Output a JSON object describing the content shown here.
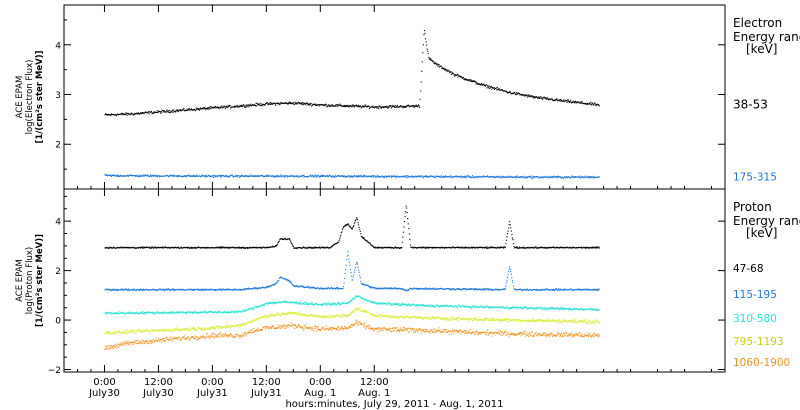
{
  "chart_data": [
    {
      "type": "scatter",
      "panel": "electron",
      "ylabel_lines": [
        "ACE EPAM",
        "log(Electron Flux)",
        "[1/(cm²s ster MeV)]"
      ],
      "ylim": [
        1.1,
        4.8
      ],
      "yticks": [
        2,
        3,
        4
      ],
      "legend_title": [
        "Electron",
        "Energy ranges",
        "[keV]"
      ],
      "series": [
        {
          "name": "38-53",
          "color": "#000000",
          "x": [
            0,
            6,
            12,
            18,
            24,
            30,
            36,
            42,
            48,
            54,
            60,
            66,
            70,
            71,
            71.5,
            72,
            72.5,
            74,
            78,
            84,
            90,
            96,
            102,
            108,
            110
          ],
          "y": [
            2.6,
            2.62,
            2.66,
            2.7,
            2.74,
            2.78,
            2.82,
            2.84,
            2.8,
            2.78,
            2.76,
            2.77,
            2.78,
            4.35,
            4.0,
            3.75,
            3.7,
            3.6,
            3.4,
            3.2,
            3.05,
            2.95,
            2.88,
            2.82,
            2.8
          ],
          "noise": 0.04
        },
        {
          "name": "175-315",
          "color": "#1e78dc",
          "x": [
            0,
            24,
            48,
            72,
            96,
            110
          ],
          "y": [
            1.38,
            1.37,
            1.37,
            1.36,
            1.35,
            1.35
          ],
          "noise": 0.03
        }
      ]
    },
    {
      "type": "scatter",
      "panel": "proton",
      "ylabel_lines": [
        "ACE EPAM",
        "log(Proton Flux)",
        "[1/(cm²s ster MeV)]"
      ],
      "ylim": [
        -2.1,
        5.3
      ],
      "yticks": [
        -2,
        0,
        2,
        4
      ],
      "legend_title": [
        "Proton",
        "Energy ranges",
        "[keV]"
      ],
      "series": [
        {
          "name": "47-68",
          "color": "#000000",
          "x": [
            0,
            36,
            38,
            39,
            41,
            42,
            50,
            52,
            53,
            54,
            55,
            56,
            57,
            60,
            66,
            67,
            68,
            80,
            89,
            90,
            91,
            110
          ],
          "y": [
            2.95,
            2.95,
            3.0,
            3.3,
            3.3,
            2.95,
            2.95,
            3.2,
            3.8,
            3.9,
            3.7,
            4.2,
            3.4,
            2.95,
            2.95,
            4.7,
            2.95,
            2.95,
            2.95,
            4.0,
            2.95,
            2.95
          ],
          "noise": 0.04
        },
        {
          "name": "115-195",
          "color": "#1e78dc",
          "x": [
            0,
            30,
            36,
            38,
            39,
            41,
            42,
            48,
            53,
            54,
            55,
            56,
            57,
            60,
            66,
            67,
            68,
            89,
            90,
            91,
            110
          ],
          "y": [
            1.25,
            1.25,
            1.35,
            1.5,
            1.75,
            1.6,
            1.4,
            1.3,
            1.3,
            2.8,
            1.6,
            2.4,
            1.5,
            1.3,
            1.3,
            1.2,
            1.3,
            1.25,
            2.2,
            1.25,
            1.25
          ],
          "noise": 0.05
        },
        {
          "name": "310-580",
          "color": "#24e0d4",
          "x": [
            0,
            30,
            33,
            36,
            40,
            48,
            54,
            56,
            60,
            72,
            84,
            96,
            110
          ],
          "y": [
            0.3,
            0.35,
            0.5,
            0.7,
            0.75,
            0.65,
            0.7,
            1.0,
            0.7,
            0.6,
            0.55,
            0.5,
            0.45
          ],
          "noise": 0.07
        },
        {
          "name": "795-1193",
          "color": "#d8ec2c",
          "x": [
            0,
            24,
            30,
            33,
            36,
            42,
            48,
            54,
            56,
            60,
            72,
            84,
            96,
            110
          ],
          "y": [
            -0.5,
            -0.3,
            -0.2,
            0.0,
            0.2,
            0.3,
            0.15,
            0.2,
            0.5,
            0.2,
            0.1,
            0.05,
            0.0,
            -0.05
          ],
          "noise": 0.1
        },
        {
          "name": "1060-1900",
          "color": "#f0901c",
          "x": [
            0,
            6,
            24,
            30,
            33,
            36,
            42,
            48,
            54,
            56,
            60,
            72,
            84,
            96,
            110
          ],
          "y": [
            -1.1,
            -0.9,
            -0.6,
            -0.6,
            -0.4,
            -0.3,
            -0.2,
            -0.35,
            -0.3,
            -0.1,
            -0.35,
            -0.4,
            -0.5,
            -0.55,
            -0.6
          ],
          "noise": 0.15
        }
      ]
    }
  ],
  "xaxis": {
    "xlim": [
      -9,
      138
    ],
    "ticks": [
      {
        "x": 0,
        "time": "0:00",
        "date": "July30"
      },
      {
        "x": 12,
        "time": "12:00",
        "date": "July30"
      },
      {
        "x": 24,
        "time": "0:00",
        "date": "July31"
      },
      {
        "x": 36,
        "time": "12:00",
        "date": "July31"
      },
      {
        "x": 48,
        "time": "0:00",
        "date": "Aug. 1"
      },
      {
        "x": 60,
        "time": "12:00",
        "date": "Aug. 1"
      }
    ],
    "label": "hours:minutes, July 29, 2011 - Aug.  1, 2011"
  }
}
